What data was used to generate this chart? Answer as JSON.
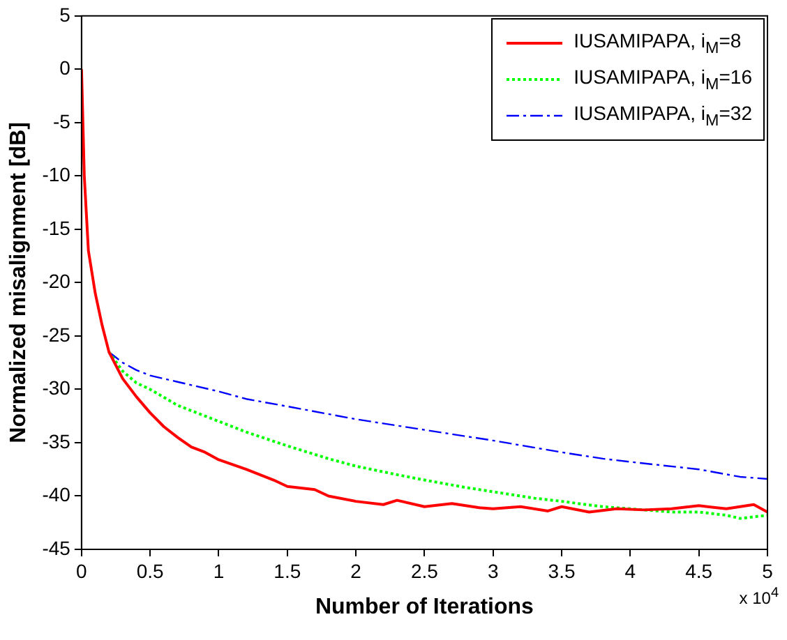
{
  "chart_data": {
    "type": "line",
    "xlabel": "Number of Iterations",
    "ylabel": "Normalized misalignment [dB]",
    "annotations": [
      "x 10$^{4}$"
    ],
    "xlim": [
      0,
      5
    ],
    "xticks": [
      0,
      0.5,
      1,
      1.5,
      2,
      2.5,
      3,
      3.5,
      4,
      4.5,
      5
    ],
    "ylim": [
      -45,
      5
    ],
    "yticks": [
      -45,
      -40,
      -35,
      -30,
      -25,
      -20,
      -15,
      -10,
      -5,
      0,
      5
    ],
    "grid": false,
    "legend": "top right",
    "marker": "none",
    "series": [
      {
        "name": "IUSAMIPAPA, i$_{M}$=8",
        "color": "#ff0000",
        "line_style": "solid",
        "x": [
          0,
          0.02,
          0.05,
          0.1,
          0.15,
          0.2,
          0.3,
          0.4,
          0.5,
          0.6,
          0.7,
          0.8,
          0.9,
          1,
          1.2,
          1.4,
          1.5,
          1.7,
          1.8,
          2,
          2.2,
          2.3,
          2.5,
          2.7,
          2.9,
          3,
          3.2,
          3.4,
          3.5,
          3.7,
          3.9,
          4.1,
          4.3,
          4.5,
          4.7,
          4.9,
          5
        ],
        "values": [
          0,
          -10,
          -17,
          -21,
          -24,
          -26.5,
          -29,
          -30.7,
          -32.2,
          -33.5,
          -34.5,
          -35.4,
          -35.9,
          -36.6,
          -37.5,
          -38.5,
          -39.1,
          -39.4,
          -40,
          -40.5,
          -40.8,
          -40.4,
          -41,
          -40.7,
          -41.1,
          -41.2,
          -41,
          -41.4,
          -41,
          -41.5,
          -41.2,
          -41.3,
          -41.2,
          -40.9,
          -41.2,
          -40.8,
          -41.5
        ]
      },
      {
        "name": "IUSAMIPAPA, i$_{M}$=16",
        "color": "#00ff00",
        "line_style": "dotted",
        "x": [
          0.2,
          0.3,
          0.4,
          0.5,
          0.7,
          1,
          1.2,
          1.5,
          1.8,
          2,
          2.3,
          2.5,
          2.8,
          3,
          3.3,
          3.5,
          3.8,
          4,
          4.3,
          4.5,
          4.7,
          4.8,
          5
        ],
        "values": [
          -26.5,
          -28.3,
          -29.4,
          -30,
          -31.5,
          -33,
          -34,
          -35.3,
          -36.5,
          -37.2,
          -38,
          -38.5,
          -39.2,
          -39.6,
          -40.2,
          -40.5,
          -41,
          -41.2,
          -41.5,
          -41.5,
          -41.8,
          -42.1,
          -41.8
        ]
      },
      {
        "name": "IUSAMIPAPA, i$_{M}$=32",
        "color": "#0000ff",
        "line_style": "dashdot",
        "x": [
          0.2,
          0.3,
          0.4,
          0.5,
          0.7,
          1,
          1.2,
          1.5,
          2,
          2.5,
          3,
          3.5,
          3.8,
          4,
          4.5,
          4.8,
          5
        ],
        "values": [
          -26.5,
          -27.5,
          -28.2,
          -28.7,
          -29.3,
          -30.2,
          -30.9,
          -31.6,
          -32.8,
          -33.8,
          -34.8,
          -35.9,
          -36.5,
          -36.8,
          -37.5,
          -38.2,
          -38.4
        ]
      }
    ]
  }
}
